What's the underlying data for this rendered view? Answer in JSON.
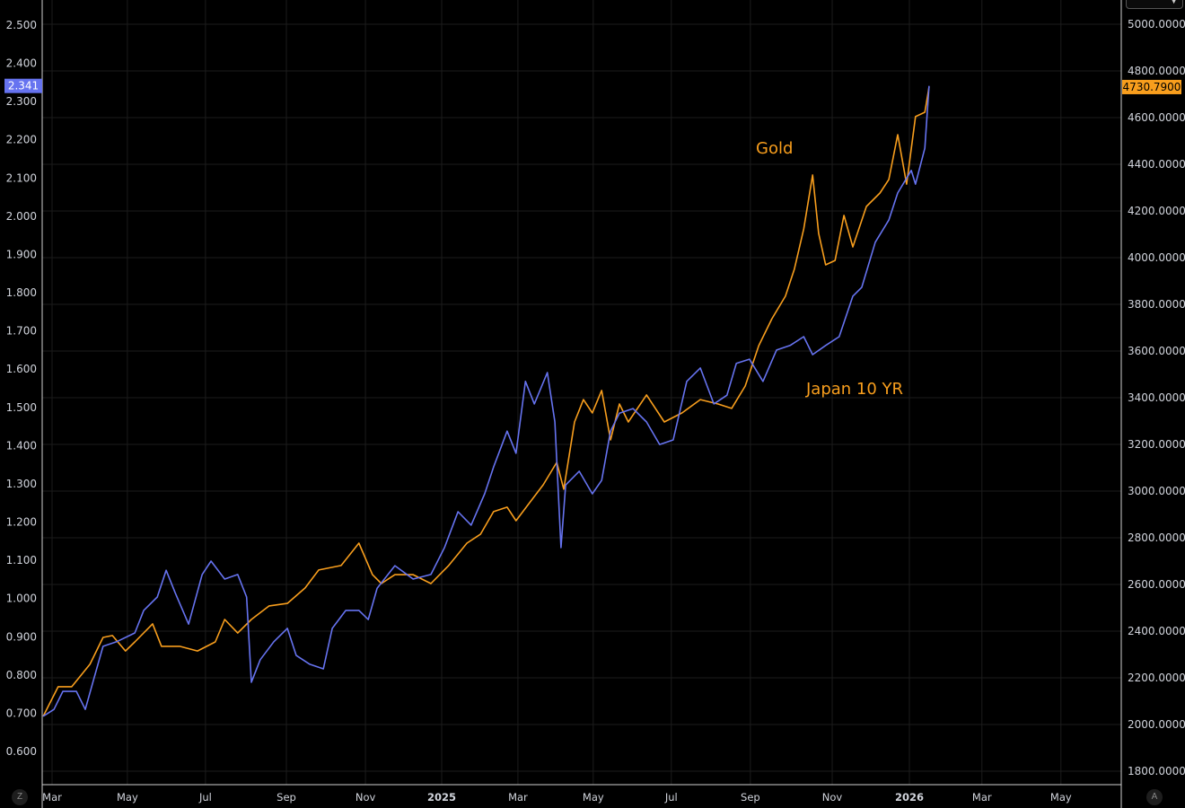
{
  "chart_data": {
    "type": "line",
    "title": "",
    "left_axis": {
      "ticks": [
        "0.600",
        "0.700",
        "0.800",
        "0.900",
        "1.000",
        "1.100",
        "1.200",
        "1.300",
        "1.400",
        "1.500",
        "1.600",
        "1.700",
        "1.800",
        "1.900",
        "2.000",
        "2.100",
        "2.200",
        "2.300",
        "2.400",
        "2.500"
      ],
      "range": [
        0.55,
        2.55
      ]
    },
    "right_axis": {
      "ticks": [
        "1800.0000",
        "2000.0000",
        "2200.0000",
        "2400.0000",
        "2600.0000",
        "2800.0000",
        "3000.0000",
        "3200.0000",
        "3400.0000",
        "3600.0000",
        "3800.0000",
        "4000.0000",
        "4200.0000",
        "4400.0000",
        "4600.0000",
        "4800.0000",
        "5000.0000"
      ],
      "range": [
        1770,
        5010
      ]
    },
    "x_axis": {
      "unit": "decimal year",
      "ticks": [
        {
          "label": "Mar",
          "t": 2024.167
        },
        {
          "label": "May",
          "t": 2024.328
        },
        {
          "label": "Jul",
          "t": 2024.495
        },
        {
          "label": "Sep",
          "t": 2024.668
        },
        {
          "label": "Nov",
          "t": 2024.837
        },
        {
          "label": "2025",
          "t": 2025.0,
          "bold": true
        },
        {
          "label": "Mar",
          "t": 2025.163
        },
        {
          "label": "May",
          "t": 2025.324
        },
        {
          "label": "Jul",
          "t": 2025.491
        },
        {
          "label": "Sep",
          "t": 2025.66
        },
        {
          "label": "Nov",
          "t": 2025.835
        },
        {
          "label": "2026",
          "t": 2026.0,
          "bold": true
        },
        {
          "label": "Mar",
          "t": 2026.155
        },
        {
          "label": "May",
          "t": 2026.324
        }
      ]
    },
    "grid": true,
    "series": [
      {
        "name": "Gold",
        "axis": "right",
        "color": "#f89e1d",
        "last_label": "4730.7900",
        "annotation": "Gold",
        "points": [
          [
            2024.148,
            2035
          ],
          [
            2024.18,
            2162
          ],
          [
            2024.209,
            2162
          ],
          [
            2024.248,
            2258
          ],
          [
            2024.276,
            2373
          ],
          [
            2024.296,
            2381
          ],
          [
            2024.324,
            2315
          ],
          [
            2024.344,
            2354
          ],
          [
            2024.382,
            2431
          ],
          [
            2024.401,
            2335
          ],
          [
            2024.44,
            2335
          ],
          [
            2024.478,
            2315
          ],
          [
            2024.516,
            2354
          ],
          [
            2024.536,
            2450
          ],
          [
            2024.564,
            2392
          ],
          [
            2024.593,
            2450
          ],
          [
            2024.631,
            2508
          ],
          [
            2024.67,
            2519
          ],
          [
            2024.708,
            2585
          ],
          [
            2024.737,
            2662
          ],
          [
            2024.785,
            2681
          ],
          [
            2024.823,
            2777
          ],
          [
            2024.852,
            2642
          ],
          [
            2024.871,
            2604
          ],
          [
            2024.9,
            2642
          ],
          [
            2024.939,
            2642
          ],
          [
            2024.977,
            2604
          ],
          [
            2025.015,
            2681
          ],
          [
            2025.054,
            2777
          ],
          [
            2025.083,
            2815
          ],
          [
            2025.111,
            2912
          ],
          [
            2025.14,
            2931
          ],
          [
            2025.159,
            2873
          ],
          [
            2025.188,
            2950
          ],
          [
            2025.217,
            3027
          ],
          [
            2025.246,
            3123
          ],
          [
            2025.261,
            3008
          ],
          [
            2025.284,
            3296
          ],
          [
            2025.303,
            3392
          ],
          [
            2025.322,
            3335
          ],
          [
            2025.342,
            3431
          ],
          [
            2025.361,
            3219
          ],
          [
            2025.38,
            3373
          ],
          [
            2025.399,
            3296
          ],
          [
            2025.438,
            3412
          ],
          [
            2025.476,
            3296
          ],
          [
            2025.514,
            3335
          ],
          [
            2025.553,
            3392
          ],
          [
            2025.591,
            3373
          ],
          [
            2025.62,
            3354
          ],
          [
            2025.649,
            3450
          ],
          [
            2025.678,
            3623
          ],
          [
            2025.706,
            3738
          ],
          [
            2025.735,
            3835
          ],
          [
            2025.754,
            3950
          ],
          [
            2025.774,
            4123
          ],
          [
            2025.793,
            4354
          ],
          [
            2025.806,
            4104
          ],
          [
            2025.821,
            3969
          ],
          [
            2025.841,
            3988
          ],
          [
            2025.86,
            4181
          ],
          [
            2025.879,
            4046
          ],
          [
            2025.908,
            4219
          ],
          [
            2025.937,
            4277
          ],
          [
            2025.956,
            4335
          ],
          [
            2025.975,
            4527
          ],
          [
            2025.994,
            4315
          ],
          [
            2026.013,
            4604
          ],
          [
            2026.033,
            4623
          ],
          [
            2026.042,
            4730.79
          ]
        ]
      },
      {
        "name": "Japan 10 YR",
        "axis": "left",
        "color": "#6673f0",
        "last_label": "2.341",
        "annotation": "Japan 10 YR",
        "points": [
          [
            2024.148,
            0.692
          ],
          [
            2024.171,
            0.71
          ],
          [
            2024.19,
            0.757
          ],
          [
            2024.219,
            0.757
          ],
          [
            2024.238,
            0.71
          ],
          [
            2024.257,
            0.793
          ],
          [
            2024.276,
            0.875
          ],
          [
            2024.305,
            0.887
          ],
          [
            2024.344,
            0.91
          ],
          [
            2024.363,
            0.969
          ],
          [
            2024.392,
            1.004
          ],
          [
            2024.411,
            1.074
          ],
          [
            2024.43,
            1.016
          ],
          [
            2024.459,
            0.933
          ],
          [
            2024.488,
            1.063
          ],
          [
            2024.507,
            1.098
          ],
          [
            2024.536,
            1.051
          ],
          [
            2024.564,
            1.063
          ],
          [
            2024.583,
            1.004
          ],
          [
            2024.593,
            0.781
          ],
          [
            2024.612,
            0.84
          ],
          [
            2024.641,
            0.887
          ],
          [
            2024.67,
            0.922
          ],
          [
            2024.689,
            0.851
          ],
          [
            2024.718,
            0.828
          ],
          [
            2024.747,
            0.816
          ],
          [
            2024.766,
            0.922
          ],
          [
            2024.795,
            0.969
          ],
          [
            2024.823,
            0.969
          ],
          [
            2024.843,
            0.945
          ],
          [
            2024.862,
            1.027
          ],
          [
            2024.9,
            1.086
          ],
          [
            2024.939,
            1.051
          ],
          [
            2024.977,
            1.063
          ],
          [
            2025.006,
            1.133
          ],
          [
            2025.035,
            1.227
          ],
          [
            2025.063,
            1.192
          ],
          [
            2025.092,
            1.274
          ],
          [
            2025.111,
            1.344
          ],
          [
            2025.14,
            1.438
          ],
          [
            2025.159,
            1.38
          ],
          [
            2025.179,
            1.568
          ],
          [
            2025.198,
            1.509
          ],
          [
            2025.226,
            1.591
          ],
          [
            2025.242,
            1.462
          ],
          [
            2025.255,
            1.133
          ],
          [
            2025.265,
            1.297
          ],
          [
            2025.294,
            1.333
          ],
          [
            2025.322,
            1.274
          ],
          [
            2025.342,
            1.309
          ],
          [
            2025.361,
            1.438
          ],
          [
            2025.38,
            1.485
          ],
          [
            2025.409,
            1.497
          ],
          [
            2025.438,
            1.462
          ],
          [
            2025.466,
            1.403
          ],
          [
            2025.495,
            1.415
          ],
          [
            2025.524,
            1.568
          ],
          [
            2025.553,
            1.603
          ],
          [
            2025.582,
            1.509
          ],
          [
            2025.61,
            1.532
          ],
          [
            2025.63,
            1.615
          ],
          [
            2025.658,
            1.626
          ],
          [
            2025.687,
            1.568
          ],
          [
            2025.716,
            1.65
          ],
          [
            2025.745,
            1.662
          ],
          [
            2025.774,
            1.685
          ],
          [
            2025.793,
            1.638
          ],
          [
            2025.821,
            1.662
          ],
          [
            2025.85,
            1.685
          ],
          [
            2025.879,
            1.791
          ],
          [
            2025.898,
            1.814
          ],
          [
            2025.927,
            1.932
          ],
          [
            2025.956,
            1.99
          ],
          [
            2025.975,
            2.061
          ],
          [
            2026.004,
            2.12
          ],
          [
            2026.013,
            2.084
          ],
          [
            2026.033,
            2.178
          ],
          [
            2026.042,
            2.341
          ]
        ]
      }
    ]
  },
  "corners": {
    "left": "Z",
    "right": "A"
  },
  "dropdown": {
    "chevron_icon": "chevron-down-icon"
  }
}
